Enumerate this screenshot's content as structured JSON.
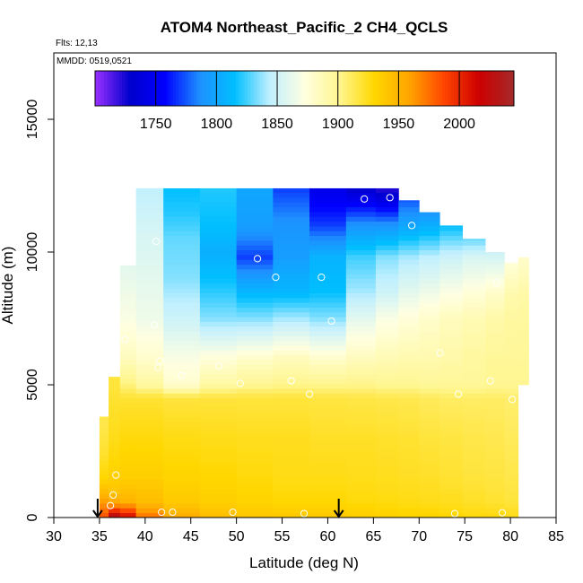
{
  "chart_data": {
    "type": "heatmap",
    "title": "ATOM4 Northeast_Pacific_2 CH4_QCLS",
    "flights_text": "Flts: 12,13",
    "dates_text": "MMDD: 0519,0521",
    "xlabel": "Latitude (deg N)",
    "ylabel": "Altitude (m)",
    "xlim": [
      30,
      85
    ],
    "ylim": [
      0,
      17500
    ],
    "x_ticks": [
      30,
      35,
      40,
      45,
      50,
      55,
      60,
      65,
      70,
      75,
      80,
      85
    ],
    "x_tick_labels": [
      "30",
      "35",
      "40",
      "45",
      "50",
      "55",
      "60",
      "65",
      "70",
      "75",
      "80",
      "85"
    ],
    "y_ticks": [
      0,
      5000,
      10000,
      15000
    ],
    "y_tick_labels": [
      "0",
      "5000",
      "10000",
      "15000"
    ],
    "colorbar": {
      "range": [
        1700,
        2045
      ],
      "ticks": [
        1750,
        1800,
        1850,
        1900,
        1950,
        2000
      ],
      "tick_labels": [
        "1750",
        "1800",
        "1850",
        "1900",
        "1950",
        "2000"
      ],
      "colors": [
        "#9b30ff",
        "#0000cd",
        "#0000ff",
        "#1e90ff",
        "#00bfff",
        "#bfefff",
        "#ffffe0",
        "#fff68f",
        "#ffd700",
        "#ffa500",
        "#ff4500",
        "#cd0000",
        "#a52a2a"
      ]
    },
    "grid": false,
    "legend": "colorbar-top",
    "sample_points": [
      {
        "lat": 64.0,
        "alt": 12000
      },
      {
        "lat": 66.8,
        "alt": 12050
      },
      {
        "lat": 69.2,
        "alt": 11000
      },
      {
        "lat": 52.3,
        "alt": 9750
      },
      {
        "lat": 54.3,
        "alt": 9050
      },
      {
        "lat": 59.3,
        "alt": 9050
      },
      {
        "lat": 60.4,
        "alt": 7400
      },
      {
        "lat": 78.5,
        "alt": 8850
      },
      {
        "lat": 41.2,
        "alt": 10400
      },
      {
        "lat": 37.8,
        "alt": 6700
      },
      {
        "lat": 41.0,
        "alt": 7250
      },
      {
        "lat": 41.6,
        "alt": 5900
      },
      {
        "lat": 41.4,
        "alt": 5650
      },
      {
        "lat": 44.0,
        "alt": 5350
      },
      {
        "lat": 48.1,
        "alt": 5700
      },
      {
        "lat": 50.4,
        "alt": 5050
      },
      {
        "lat": 56.0,
        "alt": 5150
      },
      {
        "lat": 58.0,
        "alt": 4650
      },
      {
        "lat": 72.3,
        "alt": 6200
      },
      {
        "lat": 74.3,
        "alt": 4650
      },
      {
        "lat": 77.8,
        "alt": 5150
      },
      {
        "lat": 80.2,
        "alt": 4450
      },
      {
        "lat": 35.2,
        "alt": 4150
      },
      {
        "lat": 36.8,
        "alt": 1600
      },
      {
        "lat": 36.5,
        "alt": 850
      },
      {
        "lat": 36.2,
        "alt": 450
      },
      {
        "lat": 41.8,
        "alt": 200
      },
      {
        "lat": 43.0,
        "alt": 200
      },
      {
        "lat": 49.6,
        "alt": 200
      },
      {
        "lat": 57.4,
        "alt": 150
      },
      {
        "lat": 73.9,
        "alt": 150
      },
      {
        "lat": 79.1,
        "alt": 180
      }
    ],
    "arrows_lat": [
      34.8,
      61.2
    ],
    "columns": [
      {
        "lat": 35.5,
        "top": 3800,
        "alt": [
          0,
          500,
          1000,
          1500,
          2500,
          3500
        ],
        "val": [
          1985,
          1965,
          1945,
          1930,
          1920,
          1915
        ]
      },
      {
        "lat": 36.5,
        "top": 5300,
        "alt": [
          0,
          500,
          1000,
          2000,
          3000,
          4000,
          5000
        ],
        "val": [
          2040,
          1960,
          1940,
          1930,
          1925,
          1922,
          1918
        ]
      },
      {
        "lat": 38.0,
        "top": 9500,
        "alt": [
          0,
          600,
          1500,
          3000,
          4500,
          5000,
          6000,
          7500,
          8500,
          9500
        ],
        "val": [
          2015,
          1950,
          1935,
          1928,
          1920,
          1905,
          1885,
          1870,
          1865,
          1860
        ]
      },
      {
        "lat": 40.0,
        "top": 12400,
        "alt": [
          0,
          600,
          1500,
          3000,
          4500,
          5000,
          6000,
          7500,
          9000,
          10500,
          11500,
          12400
        ],
        "val": [
          1975,
          1945,
          1935,
          1928,
          1920,
          1895,
          1880,
          1865,
          1860,
          1855,
          1850,
          1845
        ]
      },
      {
        "lat": 44.0,
        "top": 12400,
        "alt": [
          0,
          600,
          1500,
          3000,
          4500,
          5000,
          6000,
          7500,
          9000,
          10500,
          11500,
          12400
        ],
        "val": [
          1955,
          1938,
          1932,
          1926,
          1918,
          1880,
          1870,
          1850,
          1835,
          1830,
          1820,
          1815
        ]
      },
      {
        "lat": 48.0,
        "top": 12400,
        "alt": [
          0,
          600,
          1500,
          3000,
          4500,
          5000,
          6000,
          7500,
          9000,
          10000,
          11000,
          12400
        ],
        "val": [
          1945,
          1935,
          1930,
          1925,
          1918,
          1895,
          1875,
          1835,
          1815,
          1805,
          1815,
          1820
        ]
      },
      {
        "lat": 52.0,
        "top": 12400,
        "alt": [
          0,
          600,
          1500,
          3000,
          4500,
          5000,
          6000,
          7500,
          8500,
          9800,
          11000,
          12400
        ],
        "val": [
          1940,
          1932,
          1928,
          1924,
          1918,
          1900,
          1880,
          1835,
          1810,
          1770,
          1795,
          1800
        ]
      },
      {
        "lat": 56.0,
        "top": 12400,
        "alt": [
          0,
          600,
          1500,
          3000,
          4500,
          5000,
          6000,
          7500,
          8500,
          9800,
          11000,
          12400
        ],
        "val": [
          1938,
          1930,
          1926,
          1924,
          1918,
          1902,
          1885,
          1840,
          1810,
          1795,
          1790,
          1770
        ]
      },
      {
        "lat": 60.0,
        "top": 12400,
        "alt": [
          0,
          600,
          1500,
          3000,
          4500,
          5000,
          6000,
          7500,
          8500,
          9800,
          11000,
          12400
        ],
        "val": [
          1938,
          1930,
          1926,
          1922,
          1917,
          1902,
          1880,
          1835,
          1815,
          1808,
          1770,
          1745
        ]
      },
      {
        "lat": 64.0,
        "top": 12400,
        "alt": [
          0,
          600,
          1500,
          3000,
          4500,
          5000,
          6000,
          7500,
          8500,
          9800,
          11000,
          12400
        ],
        "val": [
          1936,
          1928,
          1925,
          1922,
          1916,
          1902,
          1885,
          1860,
          1840,
          1825,
          1790,
          1730
        ]
      },
      {
        "lat": 66.5,
        "top": 12400,
        "alt": [
          0,
          600,
          1500,
          3000,
          4500,
          5000,
          6000,
          7500,
          8500,
          9800,
          11000,
          12400
        ],
        "val": [
          1934,
          1927,
          1924,
          1921,
          1915,
          1900,
          1888,
          1870,
          1850,
          1835,
          1790,
          1720
        ]
      },
      {
        "lat": 69.0,
        "top": 11950,
        "alt": [
          0,
          600,
          1500,
          3000,
          4500,
          5000,
          6000,
          7500,
          8500,
          9800,
          11000,
          11950
        ],
        "val": [
          1932,
          1926,
          1923,
          1920,
          1914,
          1900,
          1890,
          1875,
          1860,
          1840,
          1800,
          1775
        ]
      },
      {
        "lat": 71.0,
        "top": 11500,
        "alt": [
          0,
          600,
          1500,
          3000,
          4500,
          5000,
          6000,
          7500,
          8500,
          9800,
          11000,
          11500
        ],
        "val": [
          1932,
          1925,
          1922,
          1918,
          1912,
          1898,
          1890,
          1880,
          1865,
          1845,
          1805,
          1790
        ]
      },
      {
        "lat": 73.5,
        "top": 11000,
        "alt": [
          0,
          600,
          1500,
          3000,
          4500,
          5000,
          6000,
          7500,
          8500,
          9800,
          11000
        ],
        "val": [
          1930,
          1924,
          1920,
          1917,
          1910,
          1898,
          1892,
          1885,
          1870,
          1850,
          1815
        ]
      },
      {
        "lat": 76.0,
        "top": 10500,
        "alt": [
          0,
          600,
          1500,
          3000,
          4500,
          5000,
          6000,
          7500,
          8500,
          9800,
          10500
        ],
        "val": [
          1928,
          1922,
          1918,
          1915,
          1910,
          1898,
          1895,
          1888,
          1875,
          1855,
          1830
        ]
      },
      {
        "lat": 78.5,
        "top": 10000,
        "alt": [
          0,
          600,
          1500,
          3000,
          4500,
          5000,
          6000,
          7500,
          8500,
          9500,
          10000
        ],
        "val": [
          1928,
          1920,
          1917,
          1914,
          1910,
          1900,
          1898,
          1892,
          1880,
          1860,
          1850
        ]
      },
      {
        "lat": 80.2,
        "top": 9600,
        "alt": [
          0,
          600,
          1500,
          3000,
          4500,
          5000,
          6000,
          7500,
          8500,
          9600
        ],
        "val": [
          1926,
          1918,
          1915,
          1912,
          1908,
          1900,
          1898,
          1895,
          1890,
          1875
        ]
      },
      {
        "lat": 81.5,
        "top": 9800,
        "alt": [
          5000,
          6000,
          7500,
          8500,
          9800
        ],
        "val": [
          1900,
          1898,
          1896,
          1892,
          1880
        ]
      }
    ]
  }
}
